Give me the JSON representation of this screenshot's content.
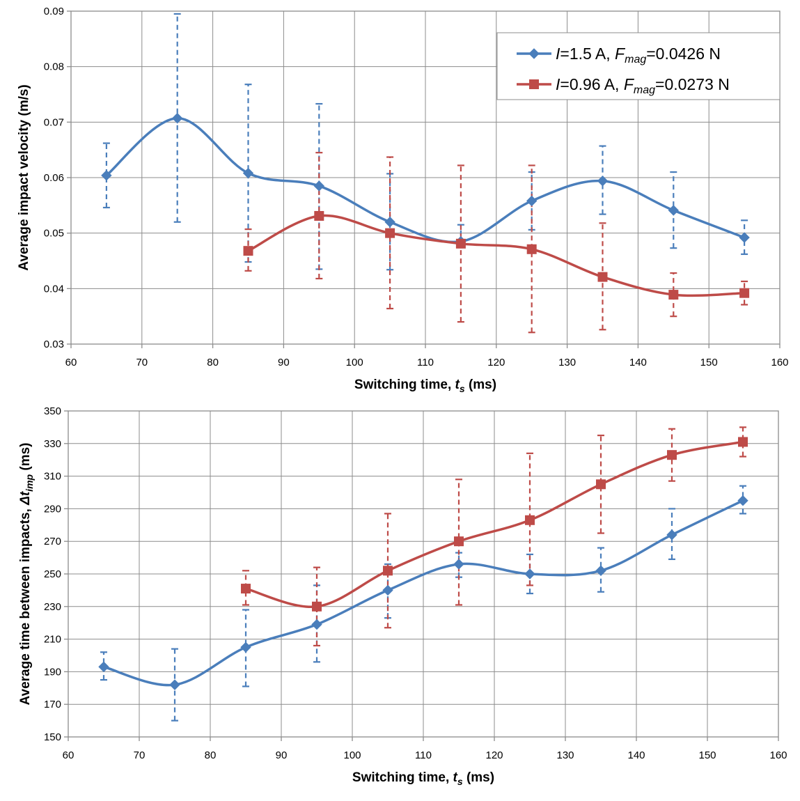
{
  "chart_data": [
    {
      "type": "line",
      "xlabel_parts": [
        "Switching time, ",
        "t",
        "s",
        " (ms)"
      ],
      "ylabel": "Average impact velocity (m/s)",
      "xlim": [
        60,
        160
      ],
      "ylim": [
        0.03,
        0.09
      ],
      "x_ticks": [
        "60",
        "70",
        "80",
        "90",
        "100",
        "110",
        "120",
        "130",
        "140",
        "150",
        "160"
      ],
      "y_ticks": [
        "0.03",
        "0.04",
        "0.05",
        "0.06",
        "0.07",
        "0.08",
        "0.09"
      ],
      "grid": true,
      "legend_position": "top-right",
      "legend": [
        {
          "parts": [
            "I",
            "=1.5 A, ",
            "F",
            "mag",
            "=0.0426 N"
          ]
        },
        {
          "parts": [
            "I",
            "=0.96 A, ",
            "F",
            "mag",
            "=0.0273 N"
          ]
        }
      ],
      "series": [
        {
          "color": "#4a7ebb",
          "marker": "diamond",
          "x": [
            65,
            75,
            85,
            95,
            105,
            115,
            125,
            135,
            145,
            155
          ],
          "y": [
            0.0604,
            0.0707,
            0.0608,
            0.0585,
            0.052,
            0.0485,
            0.0558,
            0.0594,
            0.0541,
            0.0492
          ],
          "err_low": [
            0.0546,
            0.052,
            0.0448,
            0.0435,
            0.0434,
            0.0481,
            0.0506,
            0.0534,
            0.0473,
            0.0462
          ],
          "err_high": [
            0.0662,
            0.0895,
            0.0768,
            0.0733,
            0.0607,
            0.0515,
            0.061,
            0.0657,
            0.061,
            0.0523
          ]
        },
        {
          "color": "#be4b48",
          "marker": "square",
          "x": [
            85,
            95,
            105,
            115,
            125,
            135,
            145,
            155
          ],
          "y": [
            0.0468,
            0.0531,
            0.05,
            0.0481,
            0.0471,
            0.0421,
            0.0389,
            0.0392
          ],
          "err_low": [
            0.0432,
            0.0418,
            0.0364,
            0.034,
            0.0321,
            0.0326,
            0.035,
            0.0371
          ],
          "err_high": [
            0.0507,
            0.0645,
            0.0637,
            0.0622,
            0.0622,
            0.0518,
            0.0428,
            0.0413
          ]
        }
      ]
    },
    {
      "type": "line",
      "xlabel_parts": [
        "Switching time, ",
        "t",
        "s",
        " (ms)"
      ],
      "ylabel_parts": [
        "Average time between impacts, ",
        "Δt",
        "imp",
        "  (ms)"
      ],
      "xlim": [
        60,
        160
      ],
      "ylim": [
        150,
        350
      ],
      "x_ticks": [
        "60",
        "70",
        "80",
        "90",
        "100",
        "110",
        "120",
        "130",
        "140",
        "150",
        "160"
      ],
      "y_ticks": [
        "150",
        "170",
        "190",
        "210",
        "230",
        "250",
        "270",
        "290",
        "310",
        "330",
        "350"
      ],
      "grid": true,
      "series": [
        {
          "color": "#4a7ebb",
          "marker": "diamond",
          "x": [
            65,
            75,
            85,
            95,
            105,
            115,
            125,
            135,
            145,
            155
          ],
          "y": [
            193,
            182,
            205,
            219,
            240,
            256,
            250,
            252,
            274,
            295
          ],
          "err_low": [
            185,
            160,
            181,
            196,
            223,
            248,
            238,
            239,
            259,
            287
          ],
          "err_high": [
            202,
            204,
            228,
            243,
            256,
            263,
            262,
            266,
            290,
            304
          ]
        },
        {
          "color": "#be4b48",
          "marker": "square",
          "x": [
            85,
            95,
            105,
            115,
            125,
            135,
            145,
            155
          ],
          "y": [
            241,
            230,
            252,
            270,
            283,
            305,
            323,
            331
          ],
          "err_low": [
            231,
            206,
            217,
            231,
            243,
            275,
            307,
            322
          ],
          "err_high": [
            252,
            254,
            287,
            308,
            324,
            335,
            339,
            340
          ]
        }
      ]
    }
  ]
}
